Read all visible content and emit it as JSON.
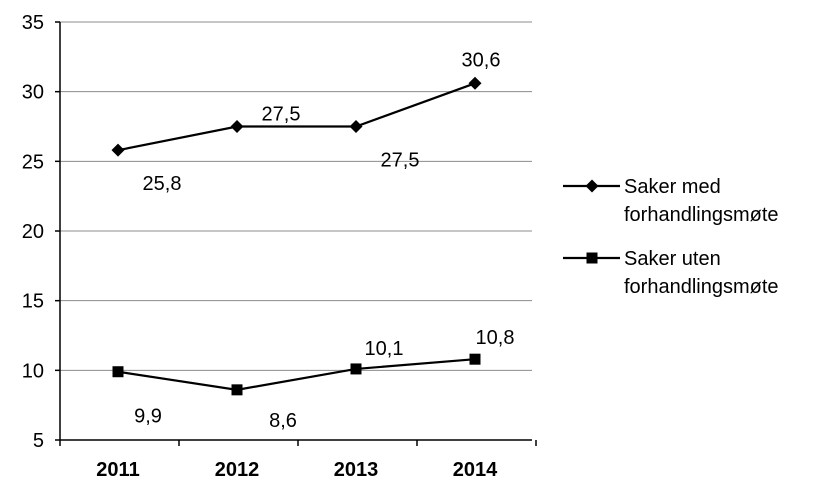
{
  "chart_data": {
    "type": "line",
    "x": [
      "2011",
      "2012",
      "2013",
      "2014"
    ],
    "ylim": [
      5,
      35
    ],
    "yticks": [
      5,
      10,
      15,
      20,
      25,
      30,
      35
    ],
    "grid": true,
    "legend_position": "right",
    "series": [
      {
        "name": "Saker med forhandlingsmøte",
        "legend_lines": [
          "Saker med",
          "forhandlingsmøte"
        ],
        "marker": "diamond",
        "values": [
          25.8,
          27.5,
          27.5,
          30.6
        ],
        "labels": [
          "25,8",
          "27,5",
          "27,5",
          "30,6"
        ]
      },
      {
        "name": "Saker uten forhandlingsmøte",
        "legend_lines": [
          "Saker uten",
          "forhandlingsmøte"
        ],
        "marker": "square",
        "values": [
          9.9,
          8.6,
          10.1,
          10.8
        ],
        "labels": [
          "9,9",
          "8,6",
          "10,1",
          "10,8"
        ]
      }
    ],
    "colors": {
      "line": "#000000",
      "grid": "#8c8c8c",
      "axis": "#000000"
    }
  }
}
